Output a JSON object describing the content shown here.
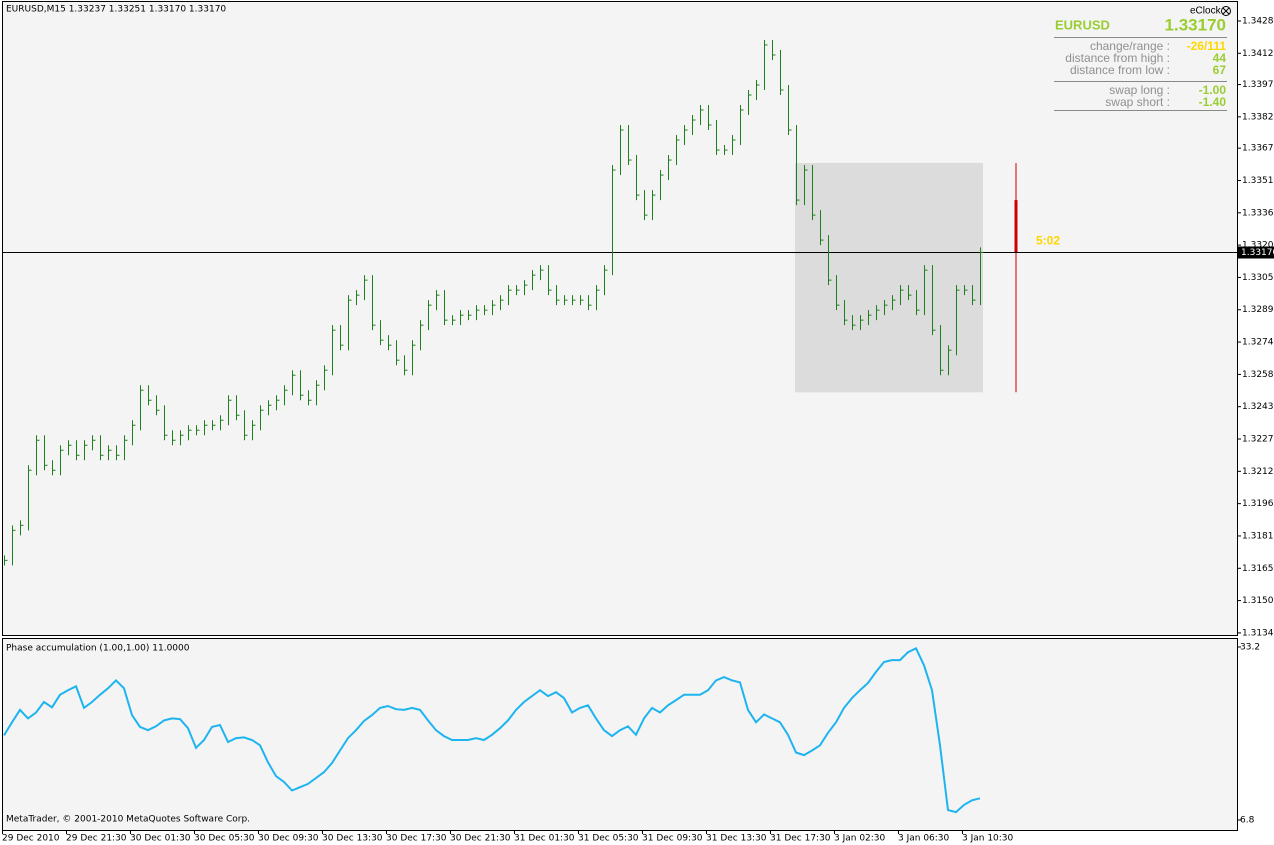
{
  "header": "EURUSD,M15  1.33237 1.33251 1.33170 1.33170",
  "info_panel": {
    "eclock": "eClock",
    "symbol": "EURUSD",
    "price": "1.33170",
    "rows": [
      [
        "change/range :",
        "-26/111"
      ],
      [
        "distance from high :",
        "44"
      ],
      [
        "distance from low :",
        "67"
      ],
      [
        "swap long :",
        "-1.00"
      ],
      [
        "swap short :",
        "-1.40"
      ]
    ]
  },
  "footer": "MetaTrader, © 2001-2010 MetaQuotes Software Corp.",
  "time_axis": [
    "29 Dec 2010",
    "29 Dec 21:30",
    "30 Dec 01:30",
    "30 Dec 05:30",
    "30 Dec 09:30",
    "30 Dec 13:30",
    "30 Dec 17:30",
    "30 Dec 21:30",
    "31 Dec 01:30",
    "31 Dec 05:30",
    "31 Dec 09:30",
    "31 Dec 13:30",
    "31 Dec 17:30",
    "3 Jan 02:30",
    "3 Jan 06:30",
    "3 Jan 10:30"
  ],
  "chart_data": [
    {
      "type": "price_bars",
      "color": "#1f7f1f",
      "ylim": [
        1.31335,
        1.34371
      ],
      "yticks": [
        {
          "value": 1.3428,
          "label": "1.34280"
        },
        1.34125,
        1.33975,
        {
          "value": 1.3382,
          "label": "1.33820"
        },
        {
          "value": 1.3367,
          "label": "1.33670"
        },
        1.33515,
        {
          "value": 1.3336,
          "label": "1.33360"
        },
        1.33205,
        {
          "value": 1.3305,
          "label": "1.33050"
        },
        1.32895,
        {
          "value": 1.3274,
          "label": "1.32740"
        },
        1.32585,
        {
          "value": 1.3243,
          "label": "1.32430"
        },
        1.32275,
        {
          "value": 1.3212,
          "label": "1.32120"
        },
        1.31965,
        {
          "value": 1.3181,
          "label": "1.31810"
        },
        1.31655,
        {
          "value": 1.315,
          "label": "1.31500"
        },
        1.31345
      ],
      "current": {
        "value": 1.3317,
        "label": "1.33170"
      },
      "range_box": {
        "high": 1.33599,
        "low": 1.32499,
        "color": "#dcdcdc"
      },
      "clock_bar": {
        "high": 1.33421,
        "low": 1.3317,
        "color": "#cc0000"
      },
      "timer": "5:02",
      "values": [
        1.31693,
        1.31837,
        1.31861,
        1.32125,
        1.32269,
        1.32149,
        1.32125,
        1.32221,
        1.32245,
        1.32197,
        1.32245,
        1.32269,
        1.32197,
        1.32221,
        1.32197,
        1.32269,
        1.32341,
        1.32509,
        1.32461,
        1.32413,
        1.32293,
        1.32269,
        1.32293,
        1.32317,
        1.32317,
        1.32341,
        1.32341,
        1.32365,
        1.32461,
        1.32389,
        1.32293,
        1.32341,
        1.32413,
        1.32437,
        1.32461,
        1.32509,
        1.32581,
        1.32485,
        1.32461,
        1.32533,
        1.32605,
        1.32797,
        1.32725,
        1.32941,
        1.32965,
        1.33037,
        1.32821,
        1.32749,
        1.32725,
        1.32653,
        1.32605,
        1.32725,
        1.32821,
        1.32917,
        1.32965,
        1.32845,
        1.32845,
        1.32869,
        1.32869,
        1.32893,
        1.32893,
        1.32917,
        1.32941,
        1.32989,
        1.32989,
        1.33013,
        1.33061,
        1.33085,
        1.32989,
        1.32941,
        1.32941,
        1.32941,
        1.32941,
        1.32917,
        1.32989,
        1.33085,
        1.33565,
        1.33757,
        1.33613,
        1.33445,
        1.33349,
        1.33445,
        1.33541,
        1.33613,
        1.33709,
        1.33757,
        1.33805,
        1.33853,
        1.33781,
        1.33661,
        1.33661,
        1.33709,
        1.33853,
        1.33925,
        1.33973,
        1.34165,
        1.34117,
        1.33949,
        1.33757,
        1.33421,
        1.33565,
        1.33349,
        1.33229,
        1.33037,
        1.32917,
        1.32845,
        1.32821,
        1.32845,
        1.32869,
        1.32893,
        1.32917,
        1.32941,
        1.32989,
        1.32965,
        1.32893,
        1.33085,
        1.32797,
        1.32605,
        1.32701,
        1.32989,
        1.32989,
        1.32941,
        1.3317
      ]
    },
    {
      "type": "line",
      "title": "Phase accumulation (1.00,1.00) 11.0000",
      "color": "#1eb4f0",
      "ylim": [
        5.27,
        34.57
      ],
      "yticks": [
        33.2,
        6.8
      ],
      "values": [
        19.7,
        21.7,
        23.6,
        22.3,
        23.2,
        24.8,
        24.0,
        25.9,
        26.6,
        27.2,
        23.9,
        24.8,
        25.9,
        26.9,
        28.1,
        26.9,
        22.8,
        21.0,
        20.5,
        21.1,
        22.0,
        22.3,
        22.2,
        20.8,
        17.8,
        19.0,
        21.0,
        21.3,
        18.7,
        19.3,
        19.4,
        19.0,
        18.2,
        15.6,
        13.5,
        12.6,
        11.3,
        11.8,
        12.3,
        13.2,
        14.1,
        15.5,
        17.4,
        19.3,
        20.5,
        21.9,
        22.8,
        23.9,
        24.2,
        23.7,
        23.6,
        23.9,
        23.6,
        22.0,
        20.5,
        19.6,
        19.0,
        19.0,
        19.0,
        19.3,
        19.0,
        19.8,
        20.8,
        22.0,
        23.6,
        24.8,
        25.7,
        26.6,
        25.7,
        26.3,
        25.4,
        23.2,
        23.9,
        24.3,
        22.3,
        20.5,
        19.6,
        20.5,
        21.1,
        19.8,
        22.3,
        23.9,
        23.2,
        24.3,
        25.1,
        25.9,
        25.9,
        25.9,
        26.6,
        28.1,
        28.6,
        28.1,
        27.8,
        23.6,
        21.7,
        22.9,
        22.3,
        21.7,
        19.8,
        17.1,
        16.7,
        17.4,
        18.2,
        20.1,
        21.7,
        23.9,
        25.4,
        26.6,
        27.7,
        29.4,
        30.9,
        31.2,
        31.2,
        32.4,
        33.0,
        30.4,
        26.6,
        18.2,
        8.3,
        8.0,
        9.1,
        9.8,
        10.1
      ]
    }
  ]
}
